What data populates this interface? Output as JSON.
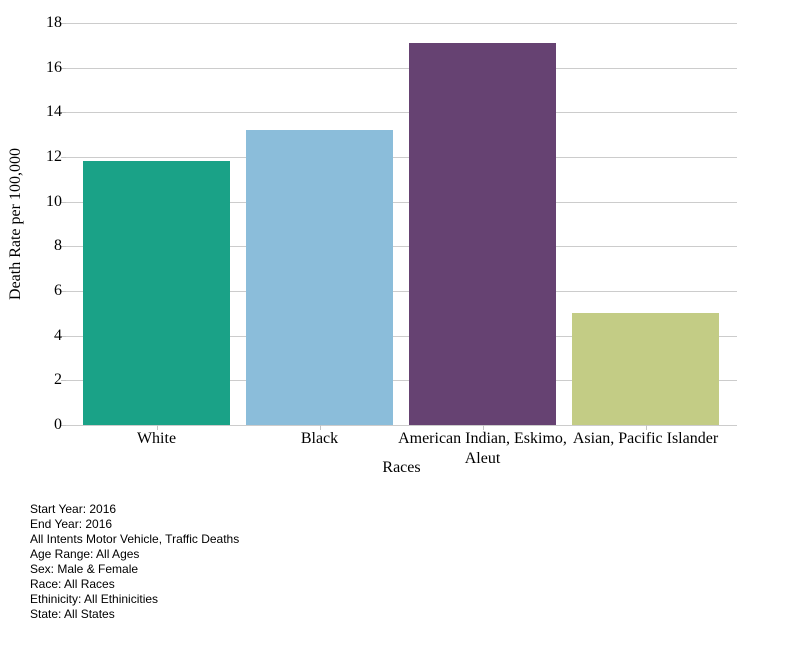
{
  "chart_data": {
    "type": "bar",
    "title": "",
    "categories": [
      "White",
      "Black",
      "American Indian, Eskimo, Aleut",
      "Asian, Pacific Islander"
    ],
    "values": [
      11.8,
      13.2,
      17.1,
      5.0
    ],
    "bar_colors": [
      "#1aa287",
      "#8bbdda",
      "#664272",
      "#c3cc85"
    ],
    "xlabel": "Races",
    "ylabel": "Death Rate per 100,000",
    "ylim": [
      0,
      18
    ],
    "ytick_step": 2,
    "grid": true,
    "gridline_color": "#cccccc",
    "legend": "none",
    "background_color": "#ffffff"
  },
  "footer": {
    "lines": [
      "Start Year: 2016",
      "End Year: 2016",
      "All Intents Motor Vehicle, Traffic Deaths",
      "Age Range: All Ages",
      "Sex: Male & Female",
      "Race: All Races",
      "Ethinicity: All Ethinicities",
      "State: All States"
    ]
  }
}
